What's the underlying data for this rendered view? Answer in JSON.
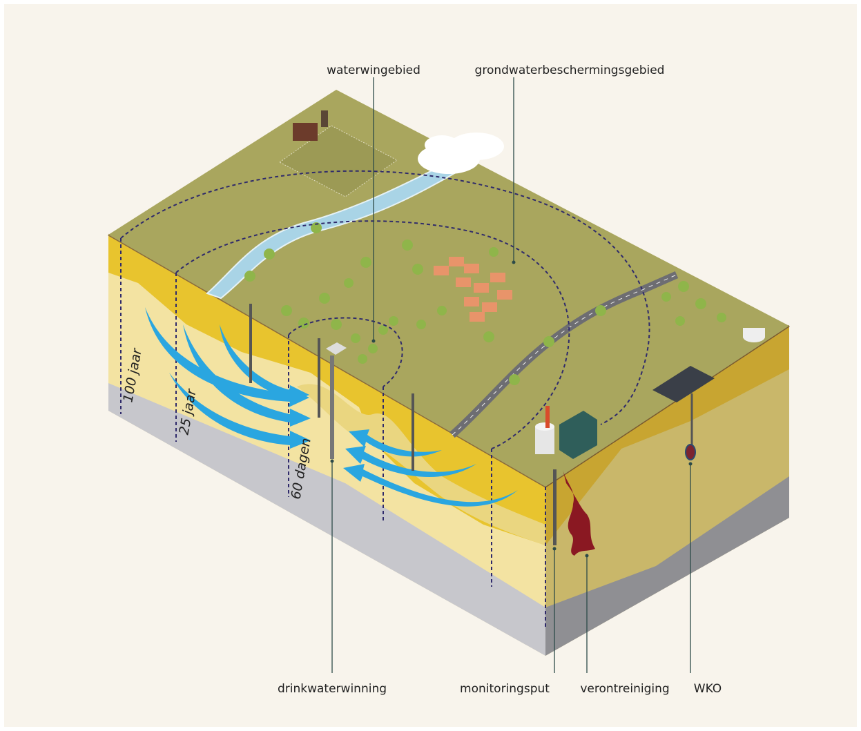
{
  "labels": {
    "waterwingebied": "waterwingebied",
    "grondwaterbeschermingsgebied": "grondwaterbeschermingsgebied",
    "drinkwaterwinning": "drinkwaterwinning",
    "monitoringsput": "monitoringsput",
    "verontreiniging": "verontreiniging",
    "wko": "WKO"
  },
  "zones": [
    "100 jaar",
    "25 jaar",
    "60 dagen"
  ]
}
